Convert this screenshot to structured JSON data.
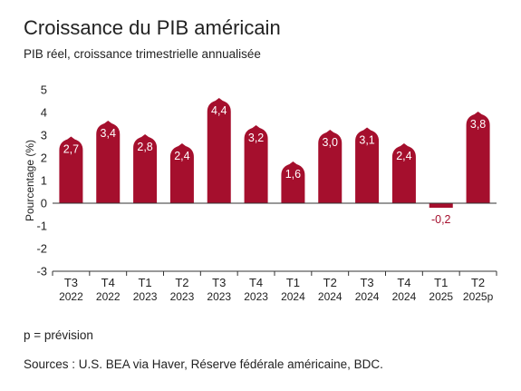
{
  "header": {
    "title": "Croissance du PIB américain",
    "subtitle": "PIB réel, croissance trimestrielle annualisée"
  },
  "footer": {
    "note": "p = prévision",
    "source": "Sources : U.S. BEA via Haver, Réserve fédérale américaine, BDC."
  },
  "chart_data": {
    "type": "bar",
    "title": "Croissance du PIB américain",
    "subtitle": "PIB réel, croissance trimestrielle annualisée",
    "ylabel": "Pourcentage (%)",
    "xlabel": "",
    "ylim": [
      -3,
      5
    ],
    "yticks": [
      5,
      4,
      3,
      2,
      1,
      0,
      -1,
      -2,
      -3
    ],
    "ytick_labels": [
      "5",
      "4",
      "3",
      "2",
      "1",
      "0",
      "-1",
      "-2",
      "-3"
    ],
    "grid": false,
    "color": "#a50f2d",
    "categories": [
      {
        "quarter": "T3",
        "year": "2022"
      },
      {
        "quarter": "T4",
        "year": "2022"
      },
      {
        "quarter": "T1",
        "year": "2023"
      },
      {
        "quarter": "T2",
        "year": "2023"
      },
      {
        "quarter": "T3",
        "year": "2023"
      },
      {
        "quarter": "T4",
        "year": "2023"
      },
      {
        "quarter": "T1",
        "year": "2024"
      },
      {
        "quarter": "T2",
        "year": "2024"
      },
      {
        "quarter": "T3",
        "year": "2024"
      },
      {
        "quarter": "T4",
        "year": "2024"
      },
      {
        "quarter": "T1",
        "year": "2025"
      },
      {
        "quarter": "T2",
        "year": "2025p"
      }
    ],
    "values": [
      2.7,
      3.4,
      2.8,
      2.4,
      4.4,
      3.2,
      1.6,
      3.0,
      3.1,
      2.4,
      -0.2,
      3.8
    ],
    "value_labels": [
      "2,7",
      "3,4",
      "2,8",
      "2,4",
      "4,4",
      "3,2",
      "1,6",
      "3,0",
      "3,1",
      "2,4",
      "-0,2",
      "3,8"
    ]
  }
}
